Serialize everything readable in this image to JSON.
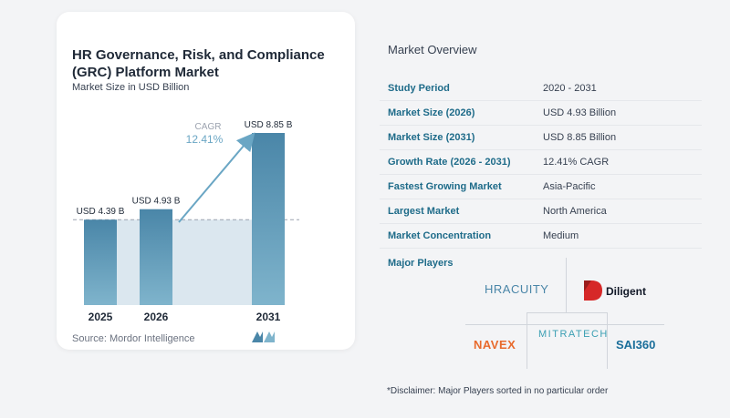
{
  "chart": {
    "title": "HR Governance, Risk, and Compliance (GRC) Platform Market",
    "subtitle": "Market Size in USD Billion",
    "source": "Source: Mordor Intelligence",
    "cagr_label": "CAGR",
    "cagr_value": "12.41%",
    "colors": {
      "bar": "#5b95b5",
      "bar_top": "#4a86a8",
      "band": "#dbe7ef",
      "arrow": "#6aa6c4",
      "cagr_text": "#6aa6c4"
    }
  },
  "chart_data": {
    "type": "bar",
    "categories": [
      "2025",
      "2026",
      "2031"
    ],
    "values": [
      4.39,
      4.93,
      8.85
    ],
    "labels": [
      "USD 4.39 B",
      "USD 4.93 B",
      "USD 8.85 B"
    ],
    "title": "HR Governance, Risk, and Compliance (GRC) Platform Market",
    "subtitle": "Market Size in USD Billion",
    "xlabel": "",
    "ylabel": "",
    "annotation": "CAGR 12.41%"
  },
  "overview": {
    "title": "Market Overview",
    "rows": [
      {
        "key": "Study Period",
        "value": "2020 - 2031"
      },
      {
        "key": "Market Size (2026)",
        "value": "USD 4.93 Billion"
      },
      {
        "key": "Market Size (2031)",
        "value": "USD 8.85 Billion"
      },
      {
        "key": "Growth Rate (2026 - 2031)",
        "value": "12.41% CAGR"
      },
      {
        "key": "Fastest Growing Market",
        "value": "Asia-Pacific"
      },
      {
        "key": "Largest Market",
        "value": "North America"
      },
      {
        "key": "Market Concentration",
        "value": "Medium"
      }
    ]
  },
  "players": {
    "title": "Major Players",
    "logos": {
      "hracuity": "HRACUITY",
      "diligent": "Diligent",
      "mitratech": "MITRATECH",
      "navex": "NAVEX",
      "sai360": "SAI360"
    }
  },
  "disclaimer": "*Disclaimer: Major Players sorted in no particular order"
}
